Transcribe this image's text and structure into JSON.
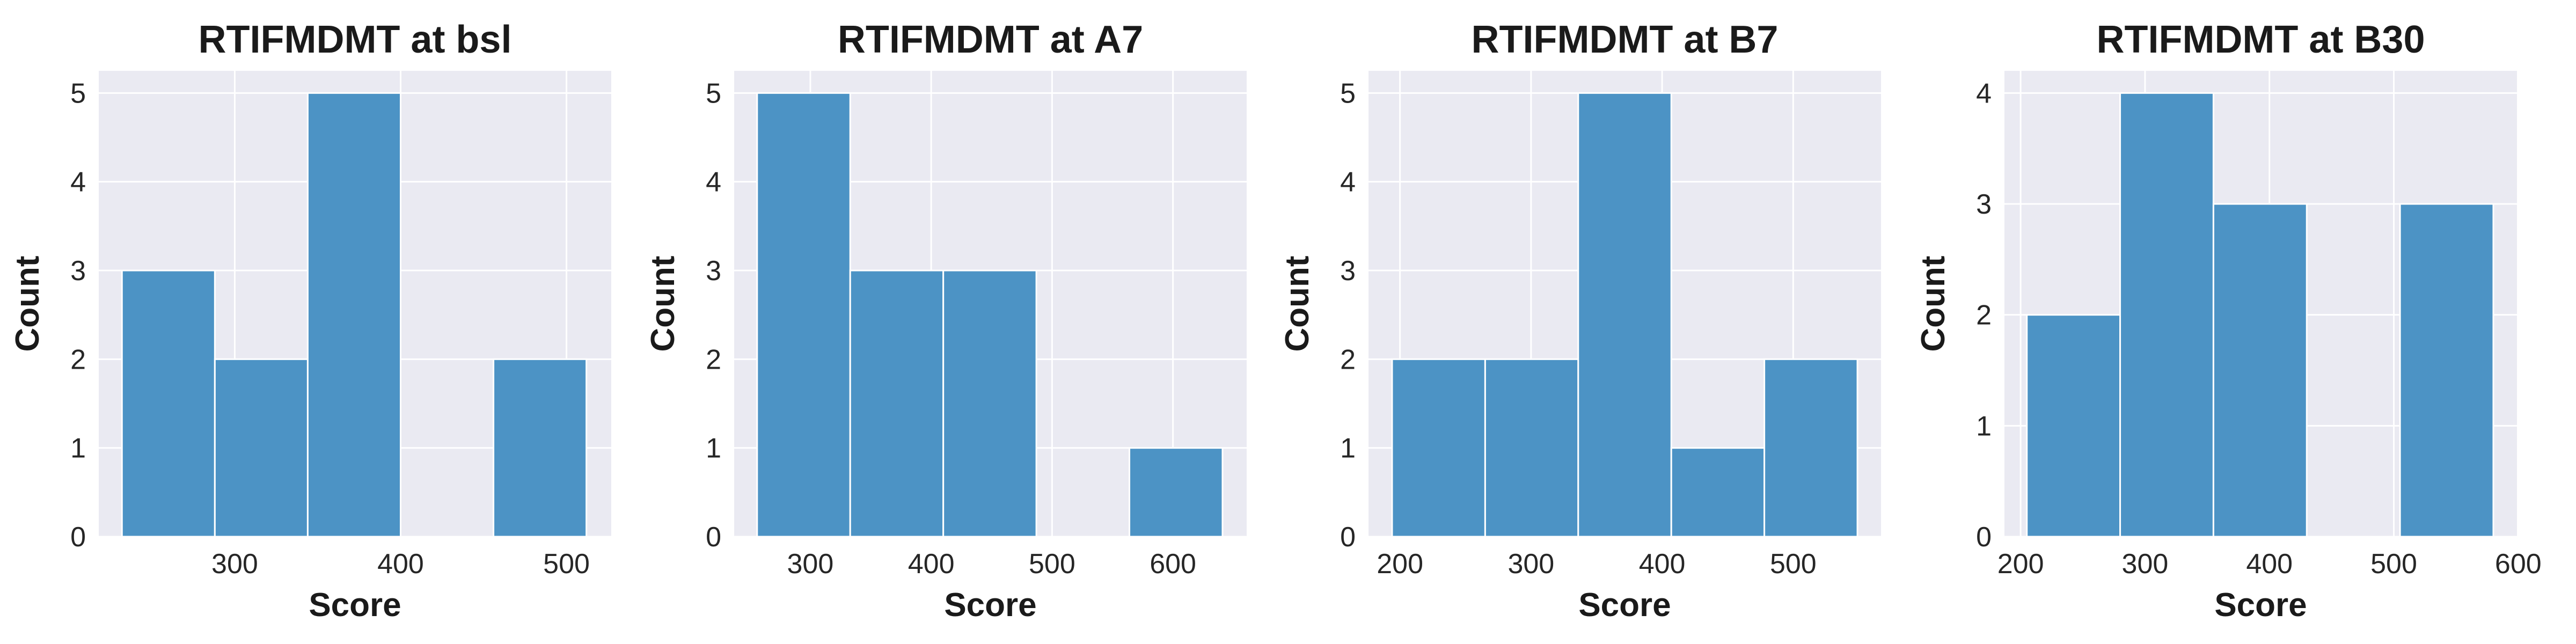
{
  "colors": {
    "panel_bg": "#eaeaf2",
    "grid": "#ffffff",
    "bar": "#4c93c5",
    "bar_edge": "#ffffff"
  },
  "chart_data": [
    {
      "type": "bar",
      "title": "RTIFMDMT at bsl",
      "xlabel": "Score",
      "ylabel": "Count",
      "bin_edges": [
        232,
        288,
        344,
        400,
        456,
        512
      ],
      "values": [
        3,
        2,
        5,
        0,
        2
      ],
      "xlim": [
        218,
        527
      ],
      "ylim": [
        0,
        5.25
      ],
      "xticks": [
        300,
        400,
        500
      ],
      "yticks": [
        0,
        1,
        2,
        3,
        4,
        5
      ],
      "grid": true,
      "legend": "none"
    },
    {
      "type": "bar",
      "title": "RTIFMDMT at A7",
      "xlabel": "Score",
      "ylabel": "Count",
      "bin_edges": [
        256,
        333,
        410,
        487,
        564,
        641
      ],
      "values": [
        5,
        3,
        3,
        0,
        1
      ],
      "xlim": [
        237,
        661
      ],
      "ylim": [
        0,
        5.25
      ],
      "xticks": [
        300,
        400,
        500,
        600
      ],
      "yticks": [
        0,
        1,
        2,
        3,
        4,
        5
      ],
      "grid": true,
      "legend": "none"
    },
    {
      "type": "bar",
      "title": "RTIFMDMT at B7",
      "xlabel": "Score",
      "ylabel": "Count",
      "bin_edges": [
        194,
        265,
        336,
        407,
        478,
        549
      ],
      "values": [
        2,
        2,
        5,
        1,
        2
      ],
      "xlim": [
        176,
        567
      ],
      "ylim": [
        0,
        5.25
      ],
      "xticks": [
        200,
        300,
        400,
        500
      ],
      "yticks": [
        0,
        1,
        2,
        3,
        4,
        5
      ],
      "grid": true,
      "legend": "none"
    },
    {
      "type": "bar",
      "title": "RTIFMDMT at B30",
      "xlabel": "Score",
      "ylabel": "Count",
      "bin_edges": [
        205,
        280,
        355,
        430,
        505,
        580
      ],
      "values": [
        2,
        4,
        3,
        0,
        3
      ],
      "xlim": [
        187,
        599
      ],
      "ylim": [
        0,
        4.2
      ],
      "xticks": [
        200,
        300,
        400,
        500,
        600
      ],
      "yticks": [
        0,
        1,
        2,
        3,
        4
      ],
      "grid": true,
      "legend": "none"
    }
  ]
}
